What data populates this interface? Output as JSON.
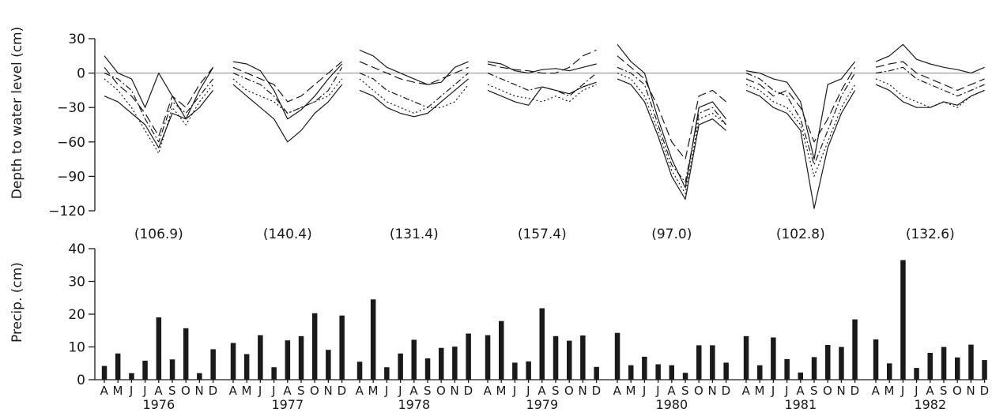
{
  "chart_data": [
    {
      "type": "line",
      "ylabel": "Depth to water level (cm)",
      "ylim": [
        -120,
        30
      ],
      "yticks": [
        30,
        0,
        -30,
        -60,
        -90,
        -120
      ],
      "years": [
        "1976",
        "1977",
        "1978",
        "1979",
        "1980",
        "1981",
        "1982"
      ],
      "months": [
        "A",
        "M",
        "J",
        "J",
        "A",
        "S",
        "O",
        "N",
        "D"
      ],
      "zero_reference_line": true,
      "series": [
        {
          "dash": "solid",
          "years": [
            [
              15,
              0,
              -5,
              -30,
              0,
              -20,
              -40,
              -15,
              5
            ],
            [
              10,
              8,
              2,
              -15,
              -40,
              -32,
              -20,
              -5,
              8
            ],
            [
              20,
              15,
              5,
              0,
              -5,
              -10,
              -8,
              5,
              10
            ],
            [
              10,
              8,
              2,
              0,
              3,
              4,
              2,
              5,
              8
            ],
            [
              25,
              10,
              0,
              -40,
              -75,
              -100,
              -30,
              -25,
              -40
            ],
            [
              2,
              0,
              -5,
              -8,
              -25,
              -75,
              -10,
              -5,
              10
            ],
            [
              10,
              15,
              25,
              12,
              8,
              5,
              3,
              0,
              5
            ]
          ]
        },
        {
          "dash": "long-dash",
          "years": [
            [
              5,
              -10,
              -20,
              -35,
              -55,
              -20,
              -30,
              -10,
              5
            ],
            [
              5,
              0,
              -5,
              -10,
              -25,
              -20,
              -10,
              0,
              10
            ],
            [
              10,
              5,
              0,
              -5,
              -8,
              -10,
              -5,
              0,
              5
            ],
            [
              8,
              5,
              3,
              2,
              0,
              0,
              5,
              15,
              20
            ],
            [
              15,
              5,
              -5,
              -30,
              -60,
              -75,
              -20,
              -15,
              -25
            ],
            [
              -5,
              -10,
              -20,
              -15,
              -30,
              -60,
              -40,
              -15,
              5
            ],
            [
              5,
              8,
              10,
              0,
              -5,
              -10,
              -15,
              -10,
              -5
            ]
          ]
        },
        {
          "dash": "dash-dot",
          "years": [
            [
              0,
              -5,
              -15,
              -40,
              -60,
              -25,
              -35,
              -20,
              -5
            ],
            [
              0,
              -5,
              -10,
              -20,
              -35,
              -30,
              -25,
              -15,
              5
            ],
            [
              0,
              -5,
              -15,
              -20,
              -25,
              -30,
              -20,
              -10,
              0
            ],
            [
              0,
              -5,
              -10,
              -15,
              -12,
              -15,
              -20,
              -10,
              0
            ],
            [
              5,
              0,
              -10,
              -45,
              -80,
              -95,
              -35,
              -30,
              -45
            ],
            [
              0,
              -5,
              -15,
              -20,
              -40,
              -80,
              -50,
              -20,
              0
            ],
            [
              0,
              2,
              5,
              -5,
              -10,
              -15,
              -20,
              -15,
              -10
            ]
          ]
        },
        {
          "dash": "dotted",
          "years": [
            [
              -5,
              -15,
              -30,
              -50,
              -70,
              -30,
              -45,
              -25,
              -10
            ],
            [
              -5,
              -15,
              -20,
              -25,
              -35,
              -30,
              -25,
              -20,
              -5
            ],
            [
              -5,
              -15,
              -25,
              -30,
              -35,
              -30,
              -30,
              -25,
              -10
            ],
            [
              -10,
              -15,
              -20,
              -22,
              -25,
              -20,
              -25,
              -15,
              -10
            ],
            [
              0,
              -5,
              -20,
              -50,
              -85,
              -105,
              -40,
              -35,
              -45
            ],
            [
              -10,
              -15,
              -25,
              -30,
              -45,
              -90,
              -60,
              -30,
              -10
            ],
            [
              -5,
              -10,
              -20,
              -25,
              -30,
              -25,
              -30,
              -20,
              -15
            ]
          ]
        },
        {
          "dash": "solid",
          "years": [
            [
              -20,
              -25,
              -35,
              -45,
              -65,
              -35,
              -40,
              -30,
              -15
            ],
            [
              -10,
              -20,
              -30,
              -40,
              -60,
              -50,
              -35,
              -25,
              -10
            ],
            [
              -15,
              -20,
              -30,
              -35,
              -38,
              -35,
              -25,
              -15,
              -5
            ],
            [
              -15,
              -20,
              -25,
              -28,
              -12,
              -15,
              -18,
              -12,
              -8
            ],
            [
              -5,
              -10,
              -25,
              -55,
              -90,
              -110,
              -45,
              -40,
              -50
            ],
            [
              -15,
              -20,
              -30,
              -35,
              -50,
              -118,
              -65,
              -35,
              -15
            ],
            [
              -10,
              -15,
              -25,
              -30,
              -30,
              -25,
              -28,
              -20,
              -15
            ]
          ]
        }
      ]
    },
    {
      "type": "bar",
      "ylabel": "Precip. (cm)",
      "ylim": [
        0,
        40
      ],
      "yticks": [
        0,
        10,
        20,
        30,
        40
      ],
      "years": [
        "1976",
        "1977",
        "1978",
        "1979",
        "1980",
        "1981",
        "1982"
      ],
      "months": [
        "A",
        "M",
        "J",
        "J",
        "A",
        "S",
        "O",
        "N",
        "D"
      ],
      "annual_totals": [
        "(106.9)",
        "(140.4)",
        "(131.4)",
        "(157.4)",
        "(97.0)",
        "(102.8)",
        "(132.6)"
      ],
      "values": [
        [
          4.2,
          8.0,
          2.0,
          5.8,
          19.0,
          6.2,
          15.7,
          2.0,
          9.3
        ],
        [
          11.2,
          7.8,
          13.6,
          3.8,
          12.0,
          13.3,
          20.3,
          9.1,
          19.6
        ],
        [
          5.5,
          24.5,
          3.8,
          8.0,
          12.2,
          6.5,
          9.7,
          10.1,
          14.1
        ],
        [
          13.6,
          17.9,
          5.2,
          5.6,
          21.8,
          13.3,
          11.9,
          13.5,
          3.9
        ],
        [
          14.3,
          4.4,
          7.0,
          4.7,
          4.4,
          2.1,
          10.5,
          10.5,
          5.2
        ],
        [
          13.3,
          4.4,
          12.9,
          6.3,
          2.2,
          6.9,
          10.6,
          10.0,
          18.4
        ],
        [
          12.3,
          5.0,
          36.5,
          3.6,
          8.2,
          10.0,
          6.8,
          10.7,
          6.0
        ]
      ]
    }
  ]
}
